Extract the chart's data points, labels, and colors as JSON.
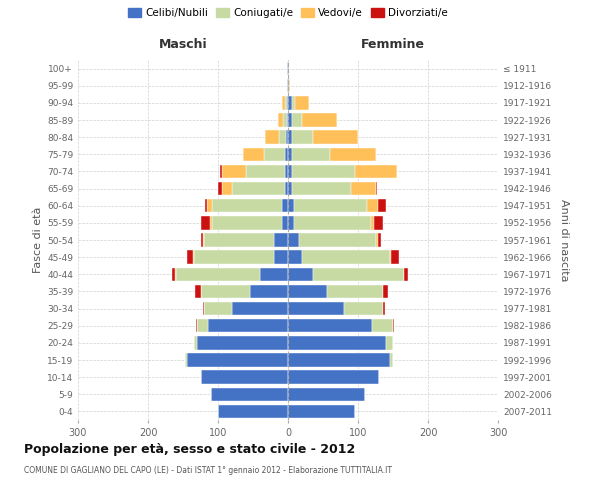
{
  "age_groups": [
    "0-4",
    "5-9",
    "10-14",
    "15-19",
    "20-24",
    "25-29",
    "30-34",
    "35-39",
    "40-44",
    "45-49",
    "50-54",
    "55-59",
    "60-64",
    "65-69",
    "70-74",
    "75-79",
    "80-84",
    "85-89",
    "90-94",
    "95-99",
    "100+"
  ],
  "birth_years": [
    "2007-2011",
    "2002-2006",
    "1997-2001",
    "1992-1996",
    "1987-1991",
    "1982-1986",
    "1977-1981",
    "1972-1976",
    "1967-1971",
    "1962-1966",
    "1957-1961",
    "1952-1956",
    "1947-1951",
    "1942-1946",
    "1937-1941",
    "1932-1936",
    "1927-1931",
    "1922-1926",
    "1917-1921",
    "1912-1916",
    "≤ 1911"
  ],
  "males_celibe": [
    100,
    110,
    125,
    145,
    130,
    115,
    80,
    55,
    40,
    20,
    20,
    8,
    8,
    5,
    5,
    4,
    3,
    2,
    2,
    1,
    1
  ],
  "males_coniugato": [
    0,
    0,
    0,
    2,
    5,
    15,
    40,
    70,
    120,
    115,
    100,
    100,
    100,
    75,
    55,
    30,
    10,
    5,
    3,
    0,
    0
  ],
  "males_vedovo": [
    0,
    0,
    0,
    0,
    0,
    0,
    0,
    0,
    1,
    1,
    2,
    4,
    8,
    15,
    35,
    30,
    20,
    8,
    3,
    0,
    0
  ],
  "males_divorziato": [
    0,
    0,
    0,
    0,
    0,
    1,
    2,
    8,
    5,
    8,
    3,
    12,
    2,
    5,
    2,
    1,
    0,
    0,
    0,
    0,
    0
  ],
  "females_celibe": [
    95,
    110,
    130,
    145,
    140,
    120,
    80,
    55,
    35,
    20,
    15,
    8,
    8,
    5,
    5,
    5,
    5,
    5,
    5,
    1,
    1
  ],
  "females_coniugato": [
    0,
    0,
    0,
    5,
    10,
    30,
    55,
    80,
    130,
    125,
    110,
    110,
    105,
    85,
    90,
    55,
    30,
    15,
    5,
    0,
    0
  ],
  "females_vedovo": [
    0,
    0,
    0,
    0,
    0,
    0,
    0,
    0,
    1,
    2,
    3,
    5,
    15,
    35,
    60,
    65,
    65,
    50,
    20,
    2,
    0
  ],
  "females_divorziato": [
    0,
    0,
    0,
    0,
    0,
    1,
    3,
    8,
    5,
    12,
    5,
    12,
    12,
    2,
    1,
    1,
    0,
    0,
    0,
    0,
    0
  ],
  "color_celibe": "#4472c4",
  "color_coniugato": "#c8daa4",
  "color_vedovo": "#ffc05a",
  "color_divorziato": "#cc1111",
  "title": "Popolazione per età, sesso e stato civile - 2012",
  "subtitle": "COMUNE DI GAGLIANO DEL CAPO (LE) - Dati ISTAT 1° gennaio 2012 - Elaborazione TUTTITALIA.IT",
  "xlabel_left": "Maschi",
  "xlabel_right": "Femmine",
  "ylabel_left": "Fasce di età",
  "ylabel_right": "Anni di nascita",
  "xlim": 300,
  "legend_labels": [
    "Celibi/Nubili",
    "Coniugati/e",
    "Vedovi/e",
    "Divorziati/e"
  ],
  "bg_color": "#ffffff",
  "grid_color": "#cccccc"
}
